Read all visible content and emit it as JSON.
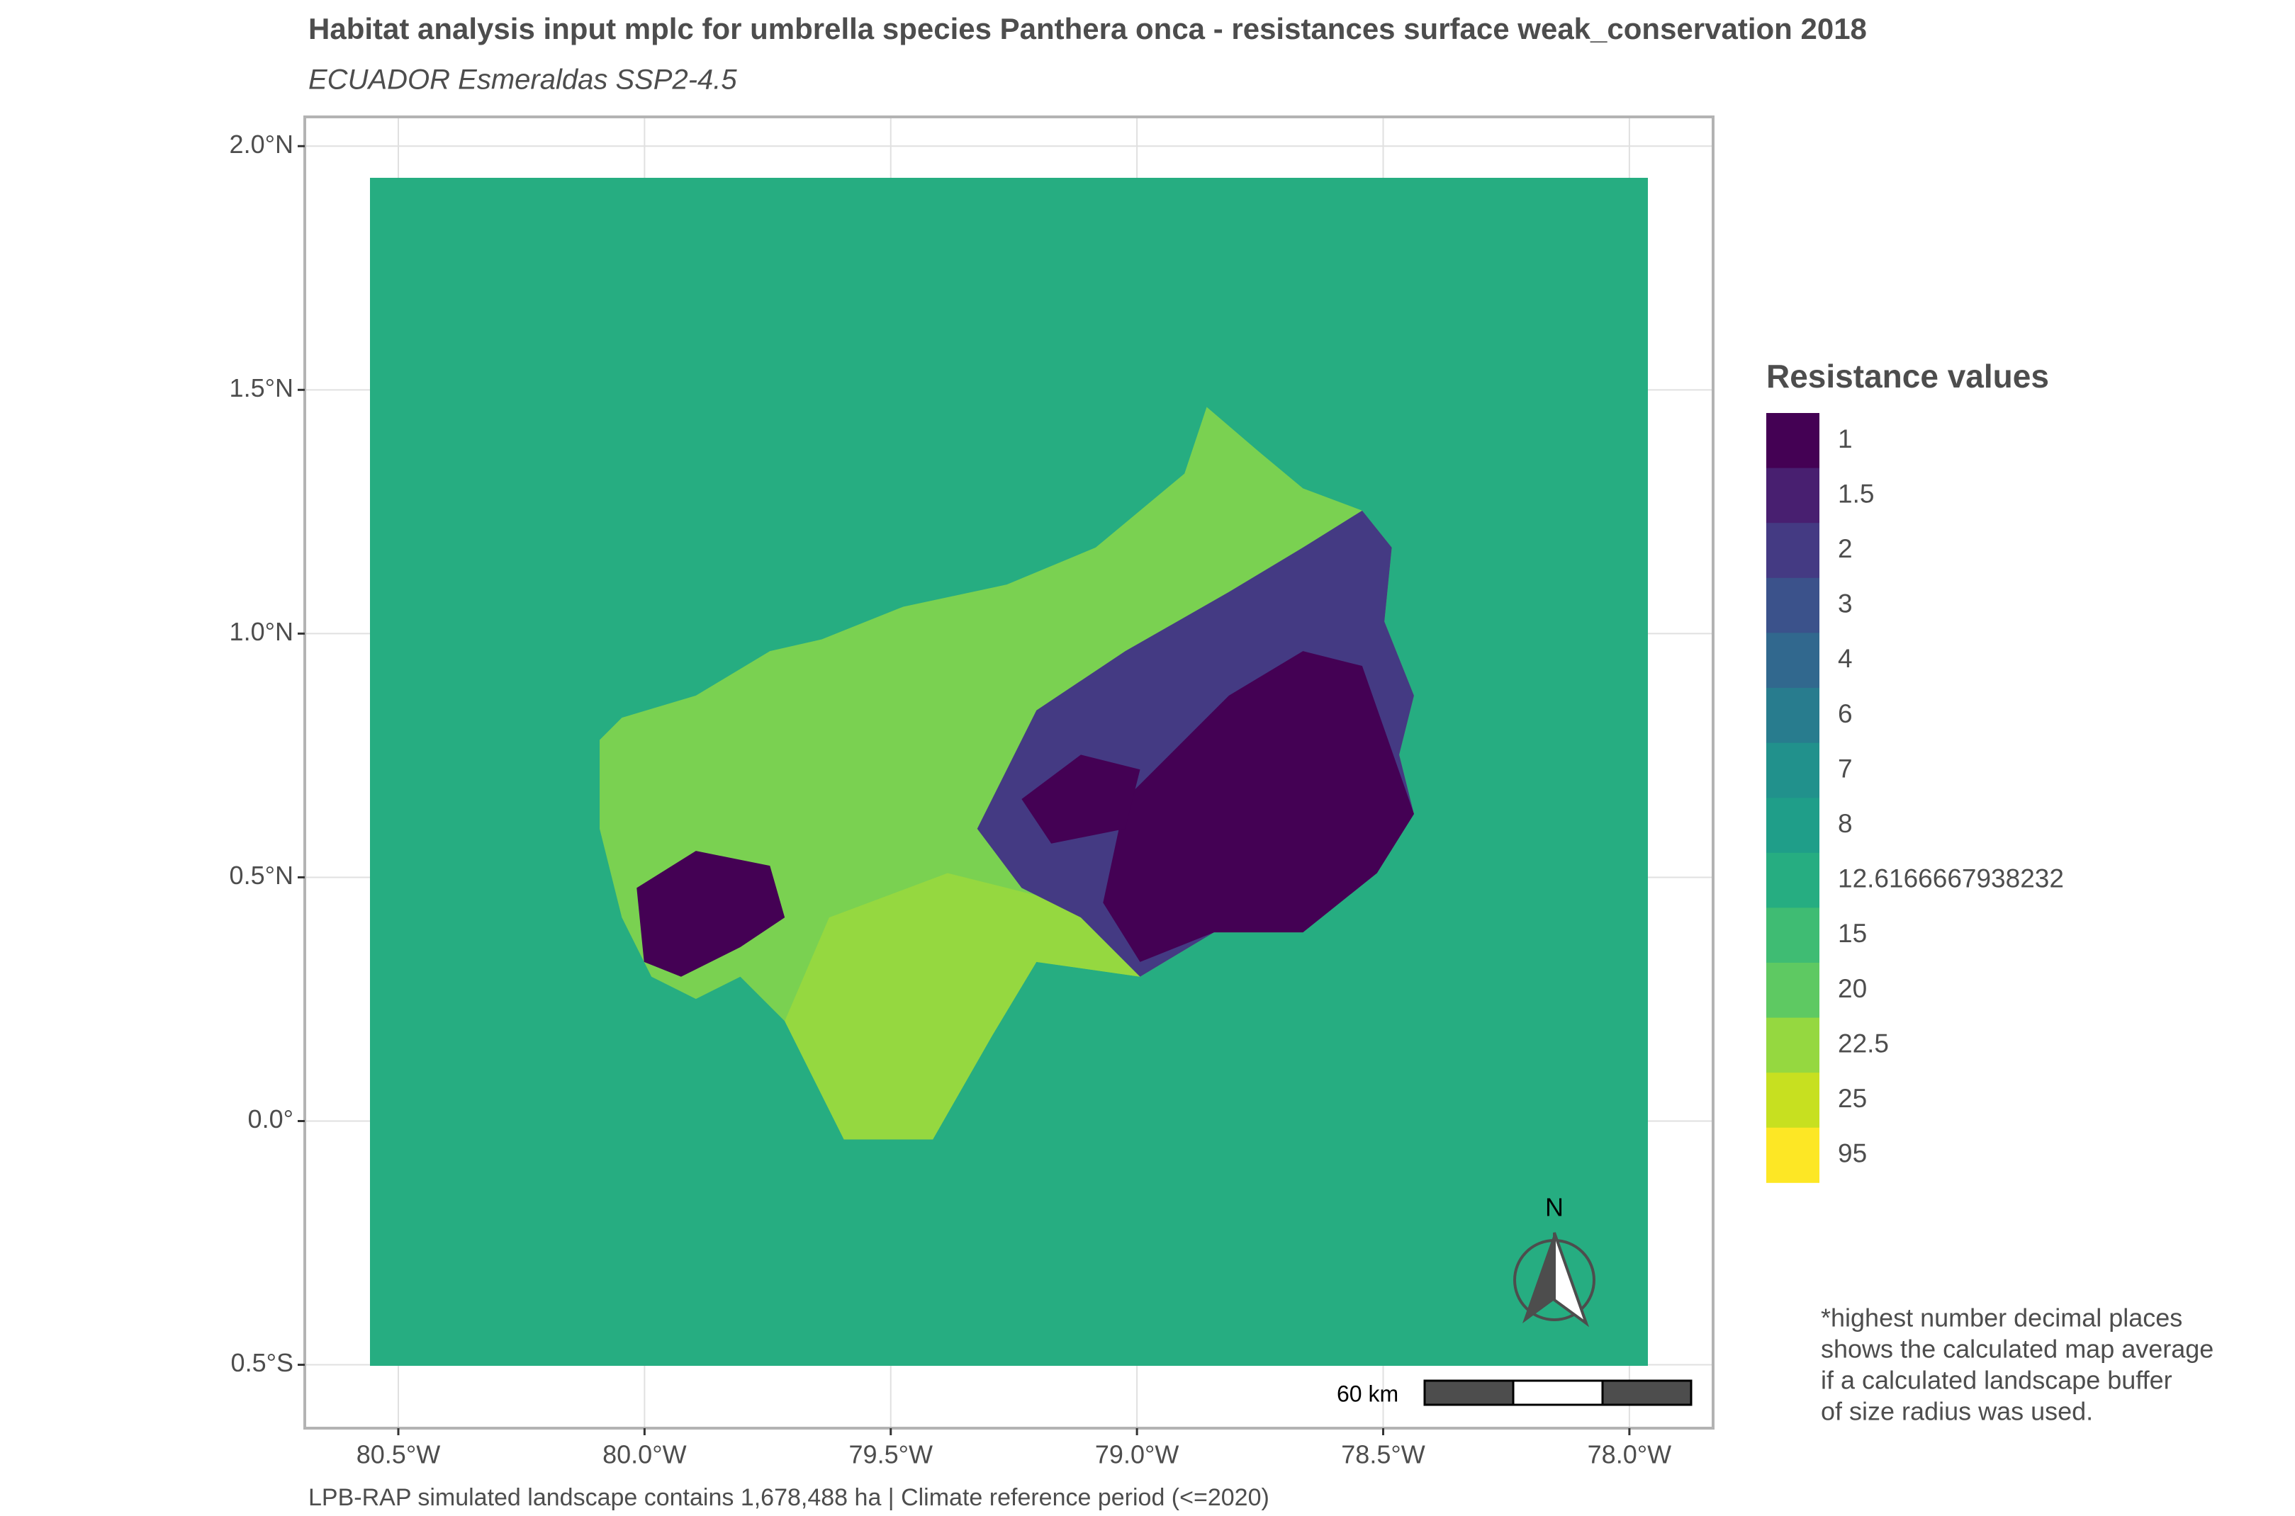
{
  "map": {
    "title": "Habitat analysis input mplc for umbrella species Panthera onca - resistances surface weak_conservation 2018",
    "subtitle": "ECUADOR Esmeraldas SSP2-4.5",
    "xlim": [
      -80.69,
      -77.83
    ],
    "ylim": [
      -0.63,
      2.06
    ],
    "xticks": [
      {
        "value": -80.5,
        "label": "80.5°W"
      },
      {
        "value": -80.0,
        "label": "80.0°W"
      },
      {
        "value": -79.5,
        "label": "79.5°W"
      },
      {
        "value": -79.0,
        "label": "79.0°W"
      },
      {
        "value": -78.5,
        "label": "78.5°W"
      },
      {
        "value": -78.0,
        "label": "78.0°W"
      }
    ],
    "yticks": [
      {
        "value": 2.0,
        "label": "2.0°N"
      },
      {
        "value": 1.5,
        "label": "1.5°N"
      },
      {
        "value": 1.0,
        "label": "1.0°N"
      },
      {
        "value": 0.5,
        "label": "0.5°N"
      },
      {
        "value": 0,
        "label": "0.0°"
      },
      {
        "value": -0.5,
        "label": "0.5°S"
      }
    ],
    "grid": true,
    "legend": {
      "title": "Resistance values",
      "items": [
        {
          "label": "1",
          "color": "#440154"
        },
        {
          "label": "1.5",
          "color": "#481f70"
        },
        {
          "label": "2",
          "color": "#443a83"
        },
        {
          "label": "3",
          "color": "#3b528b"
        },
        {
          "label": "4",
          "color": "#31688e"
        },
        {
          "label": "6",
          "color": "#287c8e"
        },
        {
          "label": "7",
          "color": "#21918c"
        },
        {
          "label": "8",
          "color": "#1f9e89"
        },
        {
          "label": "12.6166667938232",
          "color": "#26ad81"
        },
        {
          "label": "15",
          "color": "#3fbc73"
        },
        {
          "label": "20",
          "color": "#5ec962"
        },
        {
          "label": "22.5",
          "color": "#95d840"
        },
        {
          "label": "25",
          "color": "#c7e020"
        },
        {
          "label": "95",
          "color": "#fde725"
        }
      ]
    },
    "scale_bar": "60 km",
    "north": "N",
    "note": [
      "*highest number decimal places",
      "shows the calculated map average",
      "if a calculated landscape buffer",
      "of size radius was used."
    ],
    "caption": "LPB-RAP simulated landscape contains 1,678,488 ha | Climate reference period (<=2020)"
  }
}
